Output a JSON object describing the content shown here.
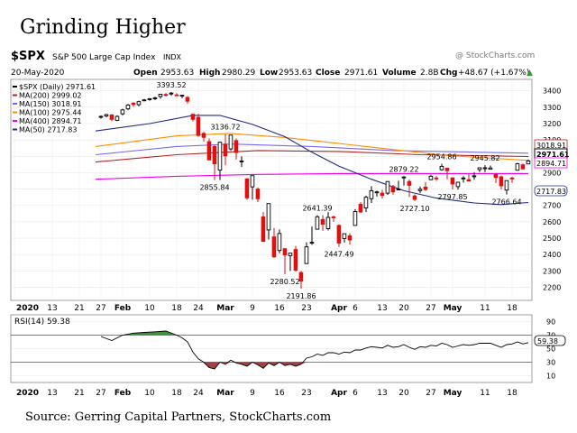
{
  "page": {
    "title": "Grinding Higher",
    "source": "Source: Gerring Capital Partners, StockCharts.com"
  },
  "header": {
    "symbol": "$SPX",
    "name": "S&P 500 Large Cap Index",
    "exchange": "INDX",
    "watermark": "@ StockCharts.com",
    "date": "20-May-2020",
    "open_label": "Open",
    "open": "2953.63",
    "high_label": "High",
    "high": "2980.29",
    "low_label": "Low",
    "low": "2953.63",
    "close_label": "Close",
    "close": "2971.61",
    "volume_label": "Volume",
    "volume": "2.8B",
    "chg_label": "Chg",
    "chg": "+48.67 (+1.67%)",
    "chg_arrow": "▲"
  },
  "legend": [
    {
      "text": "$SPX (Daily) 2971.61",
      "color": "#000000"
    },
    {
      "text": "MA(200) 2999.02",
      "color": "#b22222"
    },
    {
      "text": "MA(150) 3018.91",
      "color": "#7b68ee"
    },
    {
      "text": "MA(100) 2975.44",
      "color": "#ff8c00"
    },
    {
      "text": "MA(400) 2894.71",
      "color": "#ee00ee"
    },
    {
      "text": "MA(50) 2717.83",
      "color": "#1f2a8a"
    }
  ],
  "rsi": {
    "label": "RSI(14) 59.38",
    "value": "59.38"
  },
  "right_labels": {
    "close": "2971.61",
    "ma400": "2894.71",
    "ma50": "2717.83",
    "ma_cluster": "3018.91"
  },
  "colors": {
    "up": "#000000",
    "down": "#dd1111",
    "ma200": "#b22222",
    "ma150": "#7b68ee",
    "ma100": "#ff8c00",
    "ma400": "#ee00ee",
    "ma50": "#1f2a8a",
    "rsi": "#000000"
  },
  "x_axis": [
    {
      "label": "2020",
      "day": 0,
      "bold": true
    },
    {
      "label": "13",
      "day": 7
    },
    {
      "label": "21",
      "day": 12
    },
    {
      "label": "27",
      "day": 16
    },
    {
      "label": "Feb",
      "day": 20,
      "bold": true
    },
    {
      "label": "10",
      "day": 25
    },
    {
      "label": "18",
      "day": 30
    },
    {
      "label": "24",
      "day": 34
    },
    {
      "label": "Mar",
      "day": 39,
      "bold": true
    },
    {
      "label": "9",
      "day": 44
    },
    {
      "label": "16",
      "day": 49
    },
    {
      "label": "23",
      "day": 54
    },
    {
      "label": "Apr",
      "day": 60,
      "bold": true
    },
    {
      "label": "6",
      "day": 63
    },
    {
      "label": "13",
      "day": 68
    },
    {
      "label": "20",
      "day": 72
    },
    {
      "label": "27",
      "day": 77
    },
    {
      "label": "May",
      "day": 81,
      "bold": true
    },
    {
      "label": "11",
      "day": 87
    },
    {
      "label": "18",
      "day": 92
    }
  ],
  "chart_data": {
    "type": "candlestick",
    "price_axis": {
      "ylim": [
        2120,
        3470
      ],
      "ticks": [
        2200,
        2300,
        2400,
        2500,
        2600,
        2700,
        2800,
        2900,
        3000,
        3100,
        3200,
        3300,
        3400
      ]
    },
    "rsi_axis": {
      "ylim": [
        0,
        100
      ],
      "ticks": [
        10,
        30,
        50,
        70,
        90
      ],
      "bands": [
        30,
        70
      ]
    },
    "x_days": 95,
    "candles": [
      [
        16,
        3240,
        3250,
        3230,
        3244
      ],
      [
        17,
        3246,
        3260,
        3238,
        3255
      ],
      [
        18,
        3253,
        3258,
        3215,
        3226
      ],
      [
        19,
        3220,
        3250,
        3215,
        3244
      ],
      [
        20,
        3260,
        3290,
        3250,
        3284
      ],
      [
        21,
        3290,
        3320,
        3282,
        3313
      ],
      [
        22,
        3325,
        3330,
        3302,
        3316
      ],
      [
        23,
        3316,
        3340,
        3305,
        3334
      ],
      [
        24,
        3340,
        3350,
        3336,
        3345
      ],
      [
        25,
        3350,
        3355,
        3340,
        3352
      ],
      [
        26,
        3355,
        3364,
        3344,
        3357
      ],
      [
        27,
        3365,
        3380,
        3352,
        3379
      ],
      [
        28,
        3378,
        3386,
        3365,
        3374
      ],
      [
        29,
        3385,
        3393,
        3370,
        3386
      ],
      [
        30,
        3375,
        3386,
        3368,
        3370
      ],
      [
        31,
        3369,
        3375,
        3355,
        3373
      ],
      [
        32,
        3360,
        3368,
        3320,
        3337
      ],
      [
        33,
        3257,
        3260,
        3214,
        3226
      ],
      [
        34,
        3238,
        3260,
        3120,
        3128
      ],
      [
        35,
        3140,
        3150,
        3090,
        3116
      ],
      [
        36,
        3090,
        3110,
        2977,
        2978
      ],
      [
        37,
        3060,
        3070,
        2855,
        2954
      ],
      [
        38,
        2916,
        3090,
        2855,
        3086
      ],
      [
        39,
        3075,
        3136,
        2945,
        3003
      ],
      [
        40,
        3045,
        3130,
        3034,
        3130
      ],
      [
        41,
        3096,
        3110,
        2980,
        3023
      ],
      [
        42,
        2970,
        3000,
        2935,
        2972
      ],
      [
        43,
        2863,
        2865,
        2734,
        2746
      ],
      [
        44,
        2813,
        2882,
        2735,
        2882
      ],
      [
        45,
        2800,
        2810,
        2720,
        2741
      ],
      [
        46,
        2630,
        2660,
        2478,
        2480
      ],
      [
        47,
        2550,
        2711,
        2492,
        2711
      ],
      [
        48,
        2508,
        2562,
        2380,
        2386
      ],
      [
        49,
        2425,
        2553,
        2407,
        2529
      ],
      [
        50,
        2436,
        2440,
        2280,
        2398
      ],
      [
        51,
        2394,
        2410,
        2300,
        2409
      ],
      [
        52,
        2431,
        2453,
        2295,
        2305
      ],
      [
        53,
        2290,
        2300,
        2192,
        2237
      ],
      [
        54,
        2345,
        2475,
        2345,
        2447
      ],
      [
        55,
        2475,
        2571,
        2459,
        2475
      ],
      [
        56,
        2555,
        2641,
        2555,
        2631
      ],
      [
        57,
        2614,
        2641,
        2545,
        2585
      ],
      [
        58,
        2558,
        2659,
        2548,
        2627
      ],
      [
        59,
        2630,
        2638,
        2600,
        2626
      ],
      [
        60,
        2578,
        2585,
        2447,
        2470
      ],
      [
        61,
        2498,
        2529,
        2473,
        2527
      ],
      [
        62,
        2515,
        2530,
        2461,
        2489
      ],
      [
        63,
        2578,
        2677,
        2578,
        2663
      ],
      [
        64,
        2707,
        2720,
        2654,
        2660
      ],
      [
        65,
        2685,
        2760,
        2660,
        2750
      ],
      [
        66,
        2741,
        2818,
        2715,
        2790
      ],
      [
        67,
        2782,
        2790,
        2754,
        2783
      ],
      [
        68,
        2775,
        2795,
        2742,
        2761
      ],
      [
        69,
        2775,
        2846,
        2765,
        2846
      ],
      [
        70,
        2816,
        2825,
        2766,
        2783
      ],
      [
        71,
        2798,
        2851,
        2797,
        2800
      ],
      [
        72,
        2874,
        2879,
        2821,
        2874
      ],
      [
        73,
        2846,
        2858,
        2751,
        2823
      ],
      [
        74,
        2758,
        2767,
        2727,
        2737
      ],
      [
        75,
        2791,
        2815,
        2775,
        2799
      ],
      [
        76,
        2812,
        2843,
        2788,
        2797
      ],
      [
        77,
        2857,
        2888,
        2855,
        2878
      ],
      [
        78,
        2868,
        2880,
        2850,
        2863
      ],
      [
        79,
        2918,
        2955,
        2912,
        2939
      ],
      [
        80,
        2927,
        2928,
        2860,
        2912
      ],
      [
        81,
        2869,
        2869,
        2798,
        2831
      ],
      [
        82,
        2815,
        2844,
        2797,
        2842
      ],
      [
        83,
        2865,
        2878,
        2839,
        2868
      ],
      [
        84,
        2857,
        2891,
        2852,
        2849
      ],
      [
        85,
        2878,
        2902,
        2856,
        2881
      ],
      [
        86,
        2919,
        2929,
        2904,
        2930
      ],
      [
        87,
        2930,
        2946,
        2904,
        2930
      ],
      [
        88,
        2922,
        2944,
        2922,
        2929
      ],
      [
        89,
        2889,
        2898,
        2836,
        2870
      ],
      [
        90,
        2875,
        2883,
        2797,
        2820
      ],
      [
        91,
        2794,
        2852,
        2767,
        2852
      ],
      [
        92,
        2868,
        2875,
        2838,
        2863
      ],
      [
        93,
        2915,
        2960,
        2913,
        2954
      ],
      [
        94,
        2948,
        2956,
        2920,
        2923
      ],
      [
        95,
        2954,
        2980,
        2954,
        2972
      ]
    ],
    "moving_averages": [
      {
        "name": "MA(200)",
        "color": "#b22222",
        "points": [
          [
            15,
            2965
          ],
          [
            30,
            3010
          ],
          [
            45,
            3035
          ],
          [
            60,
            3030
          ],
          [
            75,
            3010
          ],
          [
            95,
            2999
          ]
        ]
      },
      {
        "name": "MA(150)",
        "color": "#7b68ee",
        "points": [
          [
            15,
            3010
          ],
          [
            30,
            3060
          ],
          [
            40,
            3075
          ],
          [
            55,
            3060
          ],
          [
            70,
            3035
          ],
          [
            95,
            3019
          ]
        ]
      },
      {
        "name": "MA(100)",
        "color": "#ff8c00",
        "points": [
          [
            15,
            3060
          ],
          [
            30,
            3125
          ],
          [
            40,
            3140
          ],
          [
            50,
            3115
          ],
          [
            65,
            3060
          ],
          [
            80,
            3005
          ],
          [
            95,
            2975
          ]
        ]
      },
      {
        "name": "MA(400)",
        "color": "#ee00ee",
        "points": [
          [
            15,
            2860
          ],
          [
            30,
            2878
          ],
          [
            45,
            2890
          ],
          [
            60,
            2895
          ],
          [
            75,
            2895
          ],
          [
            95,
            2895
          ]
        ]
      },
      {
        "name": "MA(50)",
        "color": "#1f2a8a",
        "points": [
          [
            15,
            3155
          ],
          [
            25,
            3200
          ],
          [
            33,
            3250
          ],
          [
            38,
            3250
          ],
          [
            44,
            3195
          ],
          [
            50,
            3120
          ],
          [
            55,
            3025
          ],
          [
            60,
            2940
          ],
          [
            66,
            2860
          ],
          [
            72,
            2790
          ],
          [
            78,
            2745
          ],
          [
            85,
            2715
          ],
          [
            90,
            2705
          ],
          [
            95,
            2718
          ]
        ]
      }
    ],
    "annotations": [
      {
        "text": "3393.52",
        "day": 29,
        "price": 3393,
        "pos": "above"
      },
      {
        "text": "3136.72",
        "day": 39,
        "price": 3136,
        "pos": "above"
      },
      {
        "text": "2855.84",
        "day": 37,
        "price": 2855,
        "pos": "below"
      },
      {
        "text": "2641.39",
        "day": 56,
        "price": 2641,
        "pos": "above"
      },
      {
        "text": "2447.49",
        "day": 60,
        "price": 2447,
        "pos": "below"
      },
      {
        "text": "2280.52",
        "day": 50,
        "price": 2280,
        "pos": "below"
      },
      {
        "text": "2191.86",
        "day": 53,
        "price": 2192,
        "pos": "below"
      },
      {
        "text": "2879.22",
        "day": 72,
        "price": 2879,
        "pos": "above"
      },
      {
        "text": "2727.10",
        "day": 74,
        "price": 2727,
        "pos": "below"
      },
      {
        "text": "2954.86",
        "day": 79,
        "price": 2955,
        "pos": "above"
      },
      {
        "text": "2797.85",
        "day": 81,
        "price": 2798,
        "pos": "below"
      },
      {
        "text": "2945.82",
        "day": 87,
        "price": 2946,
        "pos": "above"
      },
      {
        "text": "2766.64",
        "day": 91,
        "price": 2767,
        "pos": "below"
      }
    ],
    "rsi_values": [
      [
        16,
        68
      ],
      [
        18,
        62
      ],
      [
        20,
        70
      ],
      [
        22,
        73
      ],
      [
        24,
        74
      ],
      [
        26,
        75
      ],
      [
        28,
        76
      ],
      [
        30,
        70
      ],
      [
        31,
        66
      ],
      [
        32,
        60
      ],
      [
        33,
        45
      ],
      [
        34,
        35
      ],
      [
        35,
        30
      ],
      [
        36,
        22
      ],
      [
        37,
        20
      ],
      [
        38,
        30
      ],
      [
        39,
        27
      ],
      [
        40,
        33
      ],
      [
        41,
        29
      ],
      [
        42,
        27
      ],
      [
        43,
        24
      ],
      [
        44,
        30
      ],
      [
        45,
        26
      ],
      [
        46,
        21
      ],
      [
        47,
        29
      ],
      [
        48,
        25
      ],
      [
        49,
        30
      ],
      [
        50,
        25
      ],
      [
        51,
        27
      ],
      [
        52,
        24
      ],
      [
        53,
        27
      ],
      [
        54,
        36
      ],
      [
        55,
        38
      ],
      [
        56,
        42
      ],
      [
        57,
        40
      ],
      [
        58,
        44
      ],
      [
        59,
        44
      ],
      [
        60,
        42
      ],
      [
        61,
        45
      ],
      [
        62,
        44
      ],
      [
        63,
        48
      ],
      [
        64,
        48
      ],
      [
        65,
        51
      ],
      [
        66,
        53
      ],
      [
        67,
        52
      ],
      [
        68,
        51
      ],
      [
        69,
        55
      ],
      [
        70,
        52
      ],
      [
        71,
        53
      ],
      [
        72,
        56
      ],
      [
        73,
        52
      ],
      [
        74,
        49
      ],
      [
        75,
        53
      ],
      [
        76,
        52
      ],
      [
        77,
        55
      ],
      [
        78,
        54
      ],
      [
        79,
        58
      ],
      [
        80,
        56
      ],
      [
        81,
        52
      ],
      [
        82,
        54
      ],
      [
        83,
        56
      ],
      [
        84,
        55
      ],
      [
        85,
        56
      ],
      [
        86,
        58
      ],
      [
        87,
        58
      ],
      [
        88,
        58
      ],
      [
        89,
        55
      ],
      [
        90,
        52
      ],
      [
        91,
        56
      ],
      [
        92,
        57
      ],
      [
        93,
        60
      ],
      [
        94,
        57
      ],
      [
        95,
        59
      ]
    ]
  }
}
